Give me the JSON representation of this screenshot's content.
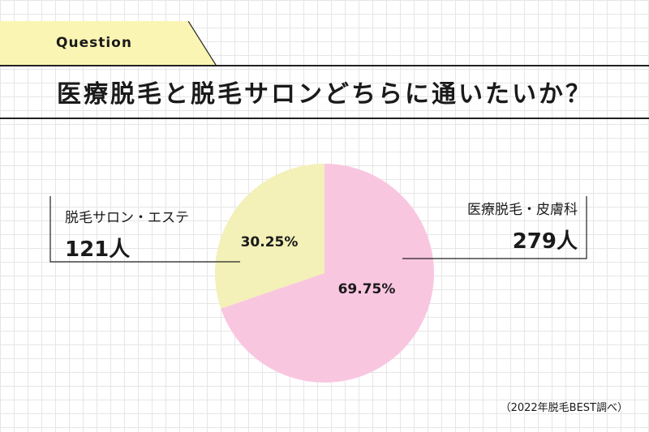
{
  "header": {
    "tab_label": "Question",
    "title": "医療脱毛と脱毛サロンどちらに通いたいか？"
  },
  "colors": {
    "tab": "#fbf5b4",
    "slice_salon": "#f3f0b8",
    "slice_medical": "#f9c6e0",
    "line": "#222222"
  },
  "chart_data": {
    "type": "pie",
    "slices": [
      {
        "name": "脱毛サロン・エステ",
        "value": 121,
        "value_label": "121人",
        "percent": 30.25,
        "percent_label": "30.25%"
      },
      {
        "name": "医療脱毛・皮膚科",
        "value": 279,
        "value_label": "279人",
        "percent": 69.75,
        "percent_label": "69.75%"
      }
    ]
  },
  "footer": {
    "source": "（2022年脱毛BEST調べ）"
  }
}
